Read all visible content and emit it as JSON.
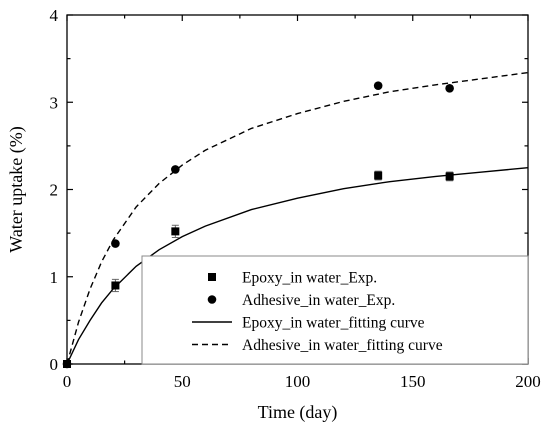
{
  "chart_data": {
    "type": "scatter",
    "xlabel": "Time (day)",
    "ylabel": "Water uptake (%)",
    "xlim": [
      0,
      200
    ],
    "ylim": [
      0,
      4
    ],
    "xticks": [
      0,
      50,
      100,
      150,
      200
    ],
    "yticks": [
      0,
      1,
      2,
      3,
      4
    ],
    "grid": false,
    "legend_position": "bottom-right",
    "series": [
      {
        "name": "Epoxy_in water_Exp.",
        "kind": "points",
        "marker": "square",
        "x": [
          0,
          21,
          47,
          135,
          166
        ],
        "y": [
          0.0,
          0.9,
          1.52,
          2.16,
          2.15
        ],
        "error": [
          0.02,
          0.07,
          0.07,
          0.05,
          0.05
        ]
      },
      {
        "name": "Adhesive_in water_Exp.",
        "kind": "points",
        "marker": "circle",
        "x": [
          0,
          21,
          47,
          135,
          166
        ],
        "y": [
          0.0,
          1.38,
          2.23,
          3.19,
          3.16
        ],
        "error": [
          0,
          0,
          0,
          0,
          0
        ]
      },
      {
        "name": "Epoxy_in water_fitting curve",
        "kind": "line",
        "dash": "solid",
        "x": [
          0,
          5,
          10,
          15,
          20,
          30,
          40,
          50,
          60,
          80,
          100,
          120,
          140,
          160,
          180,
          200
        ],
        "y": [
          0.0,
          0.28,
          0.5,
          0.7,
          0.86,
          1.12,
          1.31,
          1.46,
          1.58,
          1.77,
          1.9,
          2.01,
          2.09,
          2.15,
          2.2,
          2.25
        ]
      },
      {
        "name": "Adhesive_in water_fitting curve",
        "kind": "line",
        "dash": "dashed",
        "x": [
          0,
          5,
          10,
          15,
          20,
          30,
          40,
          50,
          60,
          80,
          100,
          120,
          140,
          160,
          180,
          200
        ],
        "y": [
          0.0,
          0.48,
          0.86,
          1.17,
          1.42,
          1.8,
          2.07,
          2.28,
          2.45,
          2.7,
          2.87,
          3.01,
          3.12,
          3.2,
          3.27,
          3.34
        ]
      }
    ]
  }
}
